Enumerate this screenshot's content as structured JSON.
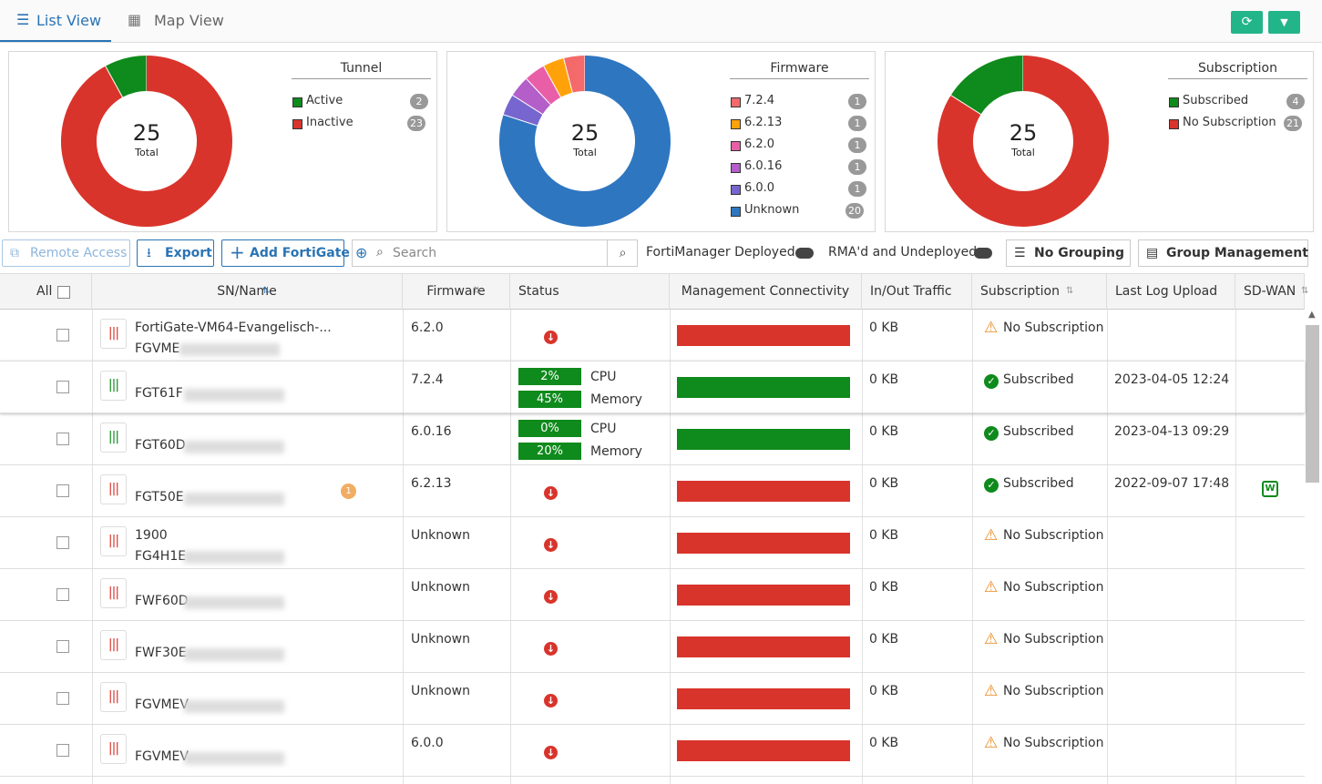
{
  "tabs": {
    "list": "List View",
    "map": "Map View"
  },
  "donuts": [
    {
      "title": "Tunnel",
      "total": 25,
      "total_label": "Total",
      "items": [
        {
          "name": "Active",
          "count": 2,
          "color": "#0f8a1c"
        },
        {
          "name": "Inactive",
          "count": 23,
          "color": "#d9342b"
        }
      ]
    },
    {
      "title": "Firmware",
      "total": 25,
      "total_label": "Total",
      "items": [
        {
          "name": "7.2.4",
          "count": 1,
          "color": "#f46a6a"
        },
        {
          "name": "6.2.13",
          "count": 1,
          "color": "#ffa20a"
        },
        {
          "name": "6.2.0",
          "count": 1,
          "color": "#e85fa8"
        },
        {
          "name": "6.0.16",
          "count": 1,
          "color": "#b35ec9"
        },
        {
          "name": "6.0.0",
          "count": 1,
          "color": "#7766cf"
        },
        {
          "name": "Unknown",
          "count": 20,
          "color": "#2e76c0"
        }
      ]
    },
    {
      "title": "Subscription",
      "total": 25,
      "total_label": "Total",
      "items": [
        {
          "name": "Subscribed",
          "count": 4,
          "color": "#0f8a1c"
        },
        {
          "name": "No Subscription",
          "count": 21,
          "color": "#d9342b"
        }
      ]
    }
  ],
  "toolbar": {
    "remote_access": "Remote Access",
    "export": "Export",
    "add": "Add FortiGate",
    "search": "Search",
    "toggle_fmg": "FortiManager Deployed",
    "toggle_rma": "RMA'd and Undeployed",
    "grouping": "No Grouping",
    "group_management": "Group Management"
  },
  "table": {
    "all": "All",
    "columns": [
      "SN/Name",
      "Firmware",
      "Status",
      "Management Connectivity",
      "In/Out Traffic",
      "Subscription",
      "Last Log Upload",
      "SD-WAN"
    ],
    "cpu_label": "CPU",
    "memory_label": "Memory",
    "rows": [
      {
        "name": [
          "FortiGate-VM64-Evangelisch-...",
          "FGVME"
        ],
        "firmware": "6.2.0",
        "online": false,
        "traffic": "0 KB",
        "subscription": "No Subscription",
        "subscribed": false
      },
      {
        "name": [
          "FGT61F"
        ],
        "firmware": "7.2.4",
        "online": true,
        "cpu": "2%",
        "memory": "45%",
        "traffic": "0 KB",
        "subscription": "Subscribed",
        "subscribed": true,
        "last_log": "2023-04-05 12:24"
      },
      {
        "name": [
          "FGT60D"
        ],
        "firmware": "6.0.16",
        "online": true,
        "cpu": "0%",
        "memory": "20%",
        "traffic": "0 KB",
        "subscription": "Subscribed",
        "subscribed": true,
        "last_log": "2023-04-13 09:29"
      },
      {
        "name": [
          "FGT50E"
        ],
        "badge": "1",
        "firmware": "6.2.13",
        "online": false,
        "traffic": "0 KB",
        "subscription": "Subscribed",
        "subscribed": true,
        "last_log": "2022-09-07 17:48",
        "sdwan": true
      },
      {
        "name": [
          "1900",
          "FG4H1E"
        ],
        "firmware": "Unknown",
        "online": false,
        "traffic": "0 KB",
        "subscription": "No Subscription",
        "subscribed": false
      },
      {
        "name": [
          "FWF60D"
        ],
        "firmware": "Unknown",
        "online": false,
        "traffic": "0 KB",
        "subscription": "No Subscription",
        "subscribed": false
      },
      {
        "name": [
          "FWF30E"
        ],
        "firmware": "Unknown",
        "online": false,
        "traffic": "0 KB",
        "subscription": "No Subscription",
        "subscribed": false
      },
      {
        "name": [
          "FGVMEV"
        ],
        "firmware": "Unknown",
        "online": false,
        "traffic": "0 KB",
        "subscription": "No Subscription",
        "subscribed": false
      },
      {
        "name": [
          "FGVMEV"
        ],
        "firmware": "6.0.0",
        "online": false,
        "traffic": "0 KB",
        "subscription": "No Subscription",
        "subscribed": false
      }
    ]
  }
}
